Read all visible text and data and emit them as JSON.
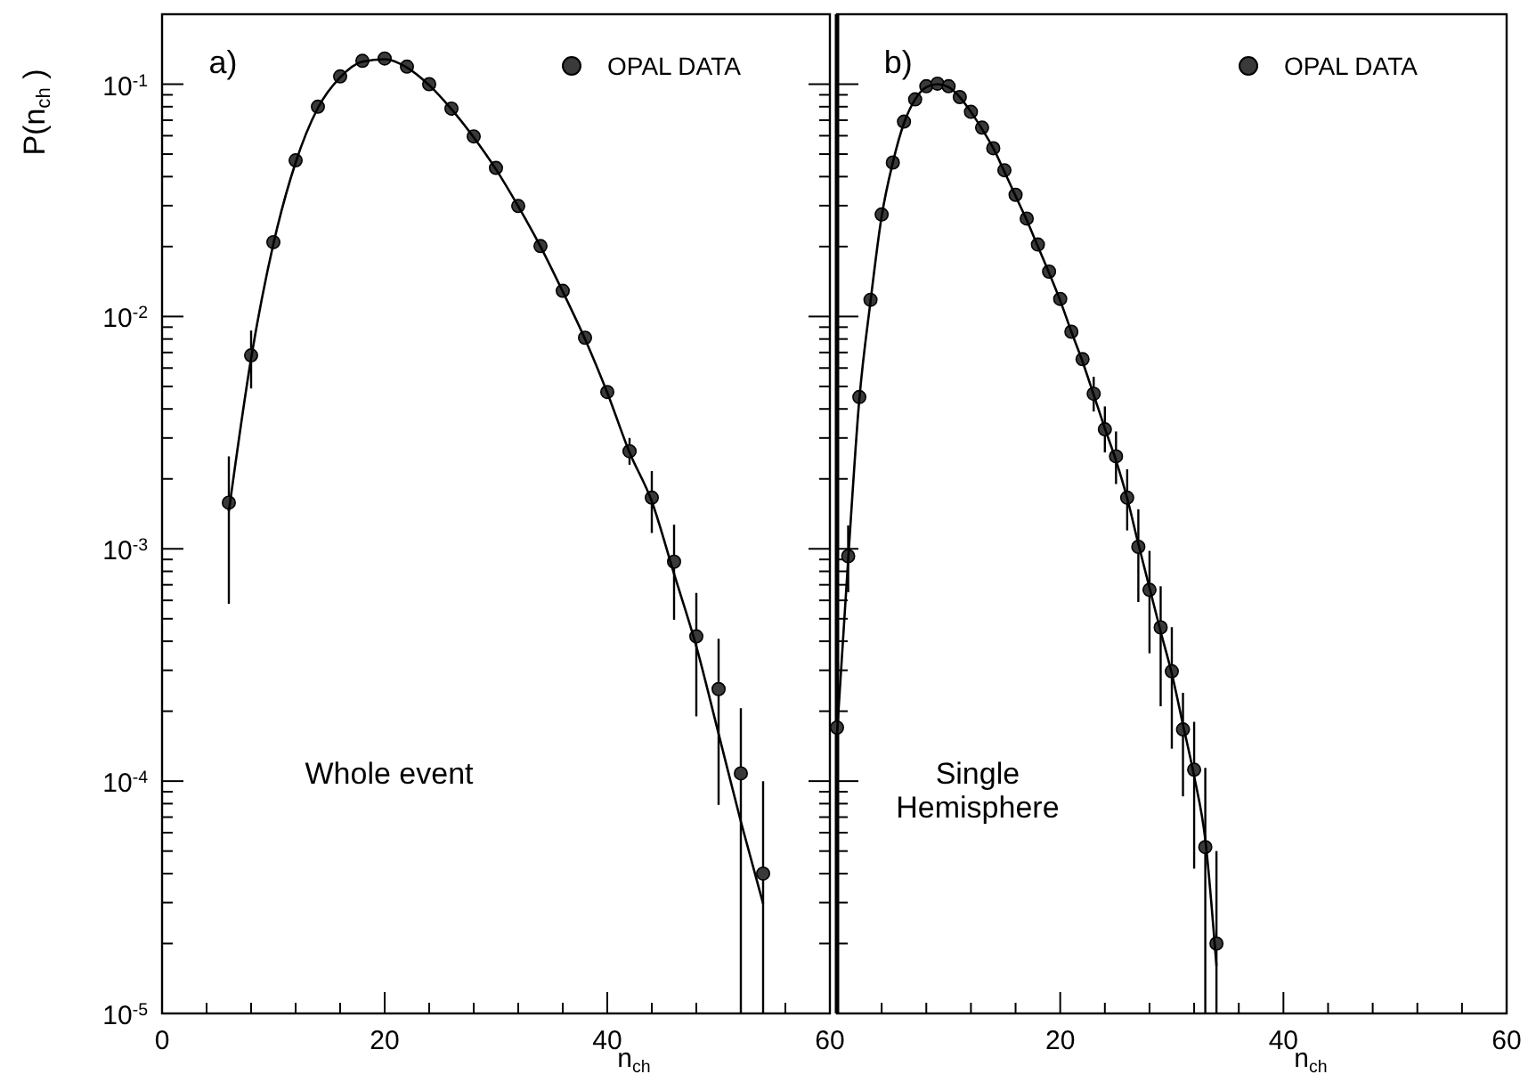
{
  "chart_data": [
    {
      "type": "scatter",
      "ylabel": "P(n$_{ch}$)",
      "xlabel": "n$_{ch}$",
      "log": "y",
      "legend": "top right",
      "annotations": [
        "a)",
        "Whole event"
      ],
      "xlim": [
        0,
        60
      ],
      "xticks": [
        0,
        {
          "value": 4,
          "label": null
        },
        {
          "value": 8,
          "label": null
        },
        {
          "value": 12,
          "label": null
        },
        {
          "value": 16,
          "label": null
        },
        20,
        {
          "value": 24,
          "label": null
        },
        {
          "value": 28,
          "label": null
        },
        {
          "value": 32,
          "label": null
        },
        {
          "value": 36,
          "label": null
        },
        40,
        {
          "value": 44,
          "label": null
        },
        {
          "value": 48,
          "label": null
        },
        {
          "value": 52,
          "label": null
        },
        {
          "value": 56,
          "label": null
        },
        60
      ],
      "ylim": [
        1e-05,
        0.2
      ],
      "yticks": [
        {
          "value": 1e-05,
          "label": "10$^{-5}$"
        },
        {
          "value": 2e-05,
          "label": null
        },
        {
          "value": 3e-05,
          "label": null
        },
        {
          "value": 4e-05,
          "label": null
        },
        {
          "value": 5e-05,
          "label": null
        },
        {
          "value": 6e-05,
          "label": null
        },
        {
          "value": 7e-05,
          "label": null
        },
        {
          "value": 8e-05,
          "label": null
        },
        {
          "value": 9e-05,
          "label": null
        },
        {
          "value": 0.0001,
          "label": "10$^{-4}$"
        },
        {
          "value": 0.0002,
          "label": null
        },
        {
          "value": 0.0003,
          "label": null
        },
        {
          "value": 0.0004,
          "label": null
        },
        {
          "value": 0.0005,
          "label": null
        },
        {
          "value": 0.0006,
          "label": null
        },
        {
          "value": 0.0007,
          "label": null
        },
        {
          "value": 0.0008,
          "label": null
        },
        {
          "value": 0.0009,
          "label": null
        },
        {
          "value": 0.001,
          "label": "10$^{-3}$"
        },
        {
          "value": 0.002,
          "label": null
        },
        {
          "value": 0.003,
          "label": null
        },
        {
          "value": 0.004,
          "label": null
        },
        {
          "value": 0.005,
          "label": null
        },
        {
          "value": 0.006,
          "label": null
        },
        {
          "value": 0.007,
          "label": null
        },
        {
          "value": 0.008,
          "label": null
        },
        {
          "value": 0.009,
          "label": null
        },
        {
          "value": 0.01,
          "label": "10$^{-2}$"
        },
        {
          "value": 0.02,
          "label": null
        },
        {
          "value": 0.03,
          "label": null
        },
        {
          "value": 0.04,
          "label": null
        },
        {
          "value": 0.05,
          "label": null
        },
        {
          "value": 0.06,
          "label": null
        },
        {
          "value": 0.07,
          "label": null
        },
        {
          "value": 0.08,
          "label": null
        },
        {
          "value": 0.09,
          "label": null
        },
        {
          "value": 0.1,
          "label": "10$^{-1}$"
        }
      ],
      "series": [
        {
          "name": "OPAL DATA",
          "type": "scatter",
          "marker": "circle",
          "color": "#3a3a3a",
          "x": [
            6,
            8,
            10,
            12,
            14,
            16,
            18,
            20,
            22,
            24,
            26,
            28,
            30,
            32,
            34,
            36,
            38,
            40,
            42,
            44,
            46,
            48,
            50,
            52,
            54
          ],
          "values": [
            0.00158,
            0.0068,
            0.0209,
            0.047,
            0.08,
            0.108,
            0.126,
            0.129,
            0.119,
            0.1,
            0.0785,
            0.0596,
            0.0436,
            0.0299,
            0.0201,
            0.0129,
            0.0081,
            0.00473,
            0.00263,
            0.00166,
            0.00088,
            0.00042,
            0.000249,
            0.000108,
            4e-05
          ],
          "errors": [
            [
              0.00058,
              0.0025
            ],
            [
              0.0049,
              0.0087
            ],
            null,
            null,
            null,
            null,
            null,
            null,
            null,
            null,
            null,
            null,
            null,
            null,
            null,
            null,
            null,
            null,
            [
              0.0023,
              0.003
            ],
            [
              0.00117,
              0.00216
            ],
            [
              0.000495,
              0.00127
            ],
            [
              0.00019,
              0.000646
            ],
            [
              7.9e-05,
              0.00041
            ],
            [
              1e-05,
              0.000206
            ],
            [
              1e-05,
              0.0001
            ]
          ]
        },
        {
          "type": "line",
          "color": "#000000",
          "x": [
            6,
            8,
            10,
            12,
            14,
            16,
            18,
            20,
            22,
            24,
            26,
            28,
            30,
            32,
            34,
            36,
            38,
            40,
            42,
            44,
            46,
            48,
            50,
            52,
            54
          ],
          "values": [
            0.00145,
            0.0066,
            0.0205,
            0.046,
            0.079,
            0.107,
            0.125,
            0.128,
            0.118,
            0.099,
            0.078,
            0.059,
            0.043,
            0.0298,
            0.02,
            0.0128,
            0.008,
            0.0047,
            0.0026,
            0.0016,
            0.00078,
            0.00038,
            0.00016,
            6.7e-05,
            2.97e-05
          ]
        }
      ]
    },
    {
      "type": "scatter",
      "xlabel": "n$_{ch}$",
      "log": "y",
      "legend": "top right",
      "tick_labels": "x",
      "annotations": [
        "b)",
        "Single\nHemisphere"
      ],
      "xlim": [
        0,
        60
      ],
      "xticks": [
        {
          "value": 0,
          "label": null
        },
        {
          "value": 4,
          "label": null
        },
        {
          "value": 8,
          "label": null
        },
        {
          "value": 12,
          "label": null
        },
        {
          "value": 16,
          "label": null
        },
        20,
        {
          "value": 24,
          "label": null
        },
        {
          "value": 28,
          "label": null
        },
        {
          "value": 32,
          "label": null
        },
        {
          "value": 36,
          "label": null
        },
        40,
        {
          "value": 44,
          "label": null
        },
        {
          "value": 48,
          "label": null
        },
        {
          "value": 52,
          "label": null
        },
        {
          "value": 56,
          "label": null
        },
        60
      ],
      "ylim": [
        1e-05,
        0.2
      ],
      "yticks": [
        {
          "value": 1e-05,
          "label": null
        },
        {
          "value": 2e-05,
          "label": null
        },
        {
          "value": 3e-05,
          "label": null
        },
        {
          "value": 4e-05,
          "label": null
        },
        {
          "value": 5e-05,
          "label": null
        },
        {
          "value": 6e-05,
          "label": null
        },
        {
          "value": 7e-05,
          "label": null
        },
        {
          "value": 8e-05,
          "label": null
        },
        {
          "value": 9e-05,
          "label": null
        },
        {
          "value": 0.0001,
          "label": null
        },
        {
          "value": 0.0002,
          "label": null
        },
        {
          "value": 0.0003,
          "label": null
        },
        {
          "value": 0.0004,
          "label": null
        },
        {
          "value": 0.0005,
          "label": null
        },
        {
          "value": 0.0006,
          "label": null
        },
        {
          "value": 0.0007,
          "label": null
        },
        {
          "value": 0.0008,
          "label": null
        },
        {
          "value": 0.0009,
          "label": null
        },
        {
          "value": 0.001,
          "label": null
        },
        {
          "value": 0.002,
          "label": null
        },
        {
          "value": 0.003,
          "label": null
        },
        {
          "value": 0.004,
          "label": null
        },
        {
          "value": 0.005,
          "label": null
        },
        {
          "value": 0.006,
          "label": null
        },
        {
          "value": 0.007,
          "label": null
        },
        {
          "value": 0.008,
          "label": null
        },
        {
          "value": 0.009,
          "label": null
        },
        {
          "value": 0.01,
          "label": null
        },
        {
          "value": 0.02,
          "label": null
        },
        {
          "value": 0.03,
          "label": null
        },
        {
          "value": 0.04,
          "label": null
        },
        {
          "value": 0.05,
          "label": null
        },
        {
          "value": 0.06,
          "label": null
        },
        {
          "value": 0.07,
          "label": null
        },
        {
          "value": 0.08,
          "label": null
        },
        {
          "value": 0.09,
          "label": null
        },
        {
          "value": 0.1,
          "label": null
        }
      ],
      "series": [
        {
          "name": "OPAL DATA",
          "type": "scatter",
          "marker": "circle",
          "color": "#3a3a3a",
          "x": [
            0,
            1,
            2,
            3,
            4,
            5,
            6,
            7,
            8,
            9,
            10,
            11,
            12,
            13,
            14,
            15,
            16,
            17,
            18,
            19,
            20,
            21,
            22,
            23,
            24,
            25,
            26,
            27,
            28,
            29,
            30,
            31,
            32,
            33,
            34
          ],
          "values": [
            0.00017,
            0.00093,
            0.0045,
            0.0118,
            0.0275,
            0.046,
            0.069,
            0.086,
            0.098,
            0.1005,
            0.098,
            0.088,
            0.076,
            0.065,
            0.053,
            0.0426,
            0.0334,
            0.0264,
            0.0204,
            0.0156,
            0.0119,
            0.0086,
            0.00655,
            0.00465,
            0.00327,
            0.0025,
            0.00166,
            0.00102,
            0.000666,
            0.000459,
            0.000297,
            0.000167,
            0.000112,
            5.2e-05,
            2e-05
          ],
          "errors": [
            [
              8e-05,
              0.000257
            ],
            [
              0.00065,
              0.00126
            ],
            null,
            null,
            null,
            null,
            null,
            null,
            null,
            null,
            null,
            null,
            null,
            null,
            null,
            null,
            null,
            null,
            null,
            null,
            null,
            null,
            null,
            [
              0.0039,
              0.0055
            ],
            [
              0.0026,
              0.0041
            ],
            [
              0.0019,
              0.0032
            ],
            [
              0.0012,
              0.0022
            ],
            [
              0.00059,
              0.00148
            ],
            [
              0.000355,
              0.00098
            ],
            [
              0.00021,
              0.00069
            ],
            [
              0.000138,
              0.00046
            ],
            [
              8.6e-05,
              0.00024
            ],
            [
              4.2e-05,
              0.00018
            ],
            [
              1e-05,
              0.000114
            ],
            [
              1e-05,
              5e-05
            ]
          ]
        },
        {
          "type": "line",
          "color": "#000000",
          "x": [
            0,
            1,
            2,
            3,
            4,
            5,
            6,
            7,
            8,
            9,
            10,
            11,
            12,
            13,
            14,
            15,
            16,
            17,
            18,
            19,
            20,
            21,
            22,
            23,
            24,
            25,
            26,
            27,
            28,
            29,
            30,
            31,
            32,
            33,
            34
          ],
          "values": [
            0.00016,
            0.0009,
            0.0044,
            0.0116,
            0.027,
            0.046,
            0.068,
            0.086,
            0.097,
            0.1,
            0.097,
            0.088,
            0.076,
            0.064,
            0.053,
            0.042,
            0.033,
            0.026,
            0.02,
            0.0154,
            0.0117,
            0.0086,
            0.0064,
            0.0046,
            0.0033,
            0.0024,
            0.00165,
            0.00105,
            0.00068,
            0.00044,
            0.00029,
            0.000175,
            0.000105,
            5.6e-05,
            1.6e-05
          ]
        }
      ]
    }
  ]
}
